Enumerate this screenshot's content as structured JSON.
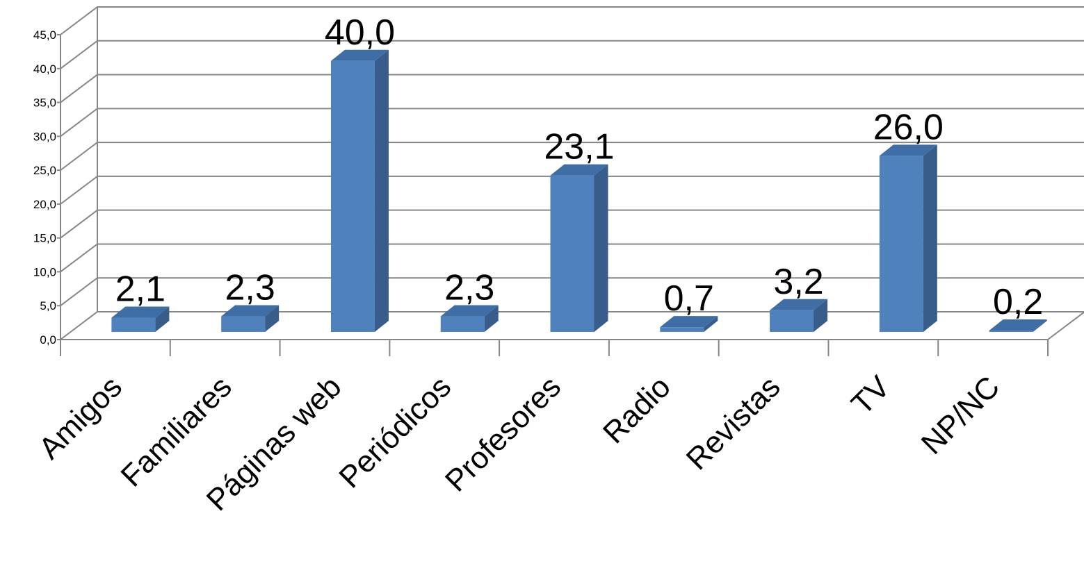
{
  "chart_data": {
    "type": "bar",
    "categories": [
      "Amigos",
      "Familiares",
      "Páginas web",
      "Periódicos",
      "Profesores",
      "Radio",
      "Revistas",
      "TV",
      "NP/NC"
    ],
    "values": [
      2.1,
      2.3,
      40.0,
      2.3,
      23.1,
      0.7,
      3.2,
      26.0,
      0.2
    ],
    "data_labels": [
      "2,1",
      "2,3",
      "40,0",
      "2,3",
      "23,1",
      "0,7",
      "3,2",
      "26,0",
      "0,2"
    ],
    "yticks": [
      "0,0",
      "5,0",
      "10,0",
      "15,0",
      "20,0",
      "25,0",
      "30,0",
      "35,0",
      "40,0",
      "45,0"
    ],
    "ylim": [
      0,
      45
    ],
    "grid": true,
    "legend": "none",
    "colors": {
      "front": "#4F81BD",
      "side": "#385D8A",
      "top": "#3F6DA5",
      "grid": "#868686"
    }
  }
}
